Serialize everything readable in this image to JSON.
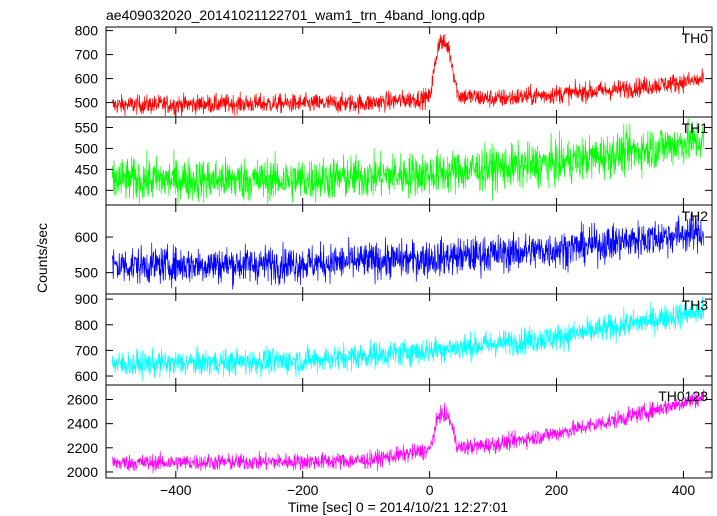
{
  "chart_data": {
    "type": "line",
    "title": "ae409032020_20141021122701_wam1_trn_4band_long.qdp",
    "xlabel": "Time [sec] 0 = 2014/10/21 12:27:01",
    "ylabel": "Counts/sec",
    "xlim": [
      -510,
      445
    ],
    "x_ticks": [
      -400,
      -200,
      0,
      200,
      400
    ],
    "x_tick_labels": [
      "−400",
      "−200",
      "0",
      "200",
      "400"
    ],
    "data_x_range": [
      -500,
      432
    ],
    "panels": [
      {
        "name": "TH0",
        "color": "#ff0000",
        "ylim": [
          440,
          815
        ],
        "y_ticks": [
          500,
          600,
          700,
          800
        ],
        "y_tick_labels": [
          "500",
          "600",
          "700",
          "800"
        ],
        "noise": 20,
        "trend": [
          [
            -500,
            490
          ],
          [
            -300,
            495
          ],
          [
            -100,
            497
          ],
          [
            0,
            520
          ],
          [
            15,
            760
          ],
          [
            30,
            730
          ],
          [
            45,
            530
          ],
          [
            100,
            515
          ],
          [
            200,
            535
          ],
          [
            300,
            555
          ],
          [
            432,
            595
          ]
        ]
      },
      {
        "name": "TH1",
        "color": "#00ff00",
        "ylim": [
          365,
          575
        ],
        "y_ticks": [
          400,
          450,
          500,
          550
        ],
        "y_tick_labels": [
          "400",
          "450",
          "500",
          "550"
        ],
        "noise": 26,
        "trend": [
          [
            -500,
            425
          ],
          [
            -200,
            425
          ],
          [
            0,
            440
          ],
          [
            200,
            465
          ],
          [
            432,
            520
          ]
        ]
      },
      {
        "name": "TH2",
        "color": "#0000ff",
        "ylim": [
          440,
          690
        ],
        "y_ticks": [
          500,
          600
        ],
        "y_tick_labels": [
          "500",
          "600"
        ],
        "noise": 26,
        "trend": [
          [
            -500,
            520
          ],
          [
            -200,
            525
          ],
          [
            0,
            540
          ],
          [
            200,
            565
          ],
          [
            432,
            615
          ]
        ]
      },
      {
        "name": "TH3",
        "color": "#00ffff",
        "ylim": [
          565,
          920
        ],
        "y_ticks": [
          600,
          700,
          800,
          900
        ],
        "y_tick_labels": [
          "600",
          "700",
          "800",
          "900"
        ],
        "noise": 26,
        "trend": [
          [
            -500,
            645
          ],
          [
            -200,
            660
          ],
          [
            0,
            700
          ],
          [
            200,
            750
          ],
          [
            432,
            855
          ]
        ]
      },
      {
        "name": "TH0123",
        "color": "#ff00ff",
        "ylim": [
          1950,
          2720
        ],
        "y_ticks": [
          2000,
          2200,
          2400,
          2600
        ],
        "y_tick_labels": [
          "2000",
          "2200",
          "2400",
          "2600"
        ],
        "noise": 35,
        "trend": [
          [
            -500,
            2075
          ],
          [
            -200,
            2085
          ],
          [
            -100,
            2095
          ],
          [
            0,
            2180
          ],
          [
            15,
            2480
          ],
          [
            30,
            2460
          ],
          [
            45,
            2200
          ],
          [
            100,
            2225
          ],
          [
            200,
            2320
          ],
          [
            300,
            2440
          ],
          [
            432,
            2620
          ]
        ]
      }
    ]
  }
}
